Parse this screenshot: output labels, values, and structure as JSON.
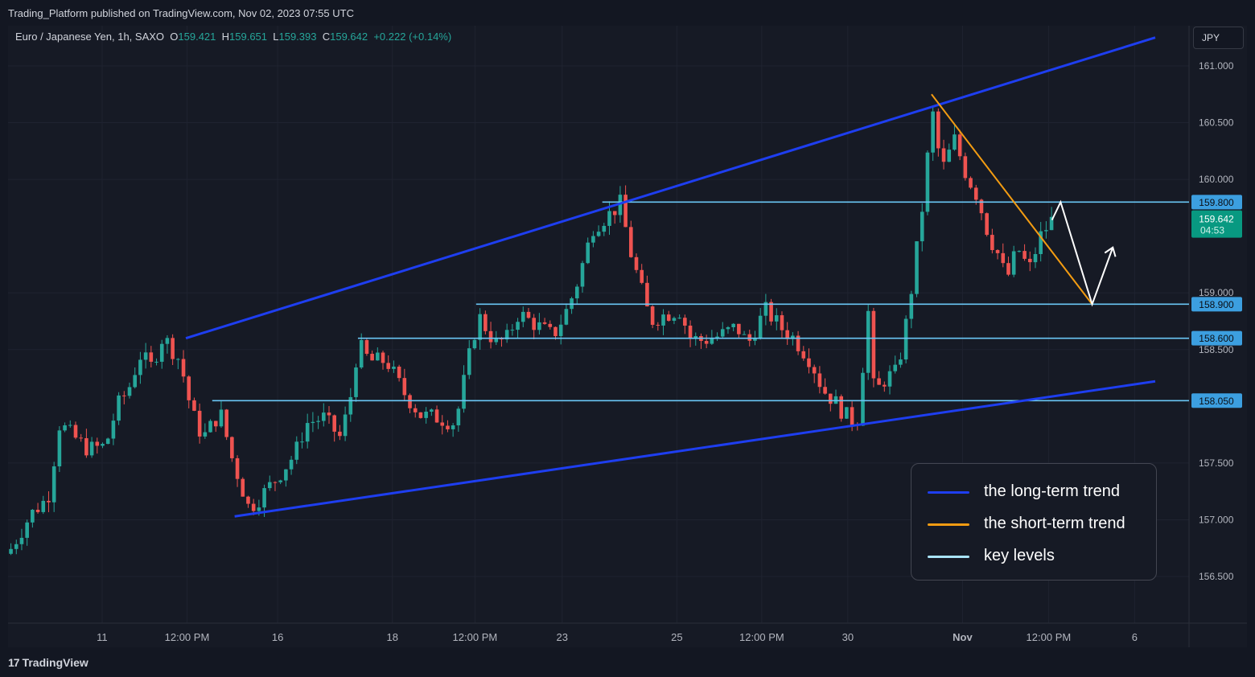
{
  "header": {
    "published_by": "Trading_Platform published on TradingView.com, Nov 02, 2023 07:55 UTC",
    "symbol": "Euro / Japanese Yen, 1h, SAXO",
    "o_label": "O",
    "o_value": "159.421",
    "h_label": "H",
    "h_value": "159.651",
    "l_label": "L",
    "l_value": "159.393",
    "c_label": "C",
    "c_value": "159.642",
    "change": "+0.222 (+0.14%)",
    "currency_button": "JPY"
  },
  "footer": {
    "brand": "TradingView",
    "brand_mark": "17"
  },
  "legend": {
    "items": [
      {
        "label": "the long-term trend",
        "color": "#1e3ef0"
      },
      {
        "label": "the short-term trend",
        "color": "#f39c12"
      },
      {
        "label": "key levels",
        "color": "#a9e4fb"
      }
    ]
  },
  "chart_data": {
    "type": "candlestick",
    "symbol": "EURJPY",
    "timeframe": "1h",
    "ylim": [
      156.1,
      161.55
    ],
    "y_ticks": [
      {
        "value": 161.0,
        "label": "161.000"
      },
      {
        "value": 160.5,
        "label": "160.500"
      },
      {
        "value": 160.0,
        "label": "160.000"
      },
      {
        "value": 159.0,
        "label": "159.000"
      },
      {
        "value": 158.5,
        "label": "158.500"
      },
      {
        "value": 157.5,
        "label": "157.500"
      },
      {
        "value": 157.0,
        "label": "157.000"
      },
      {
        "value": 156.5,
        "label": "156.500"
      }
    ],
    "x_ticks": [
      {
        "t": 16.4,
        "label": "11",
        "bold": false
      },
      {
        "t": 31.2,
        "label": "12:00 PM",
        "bold": false
      },
      {
        "t": 47.0,
        "label": "16",
        "bold": false
      },
      {
        "t": 67.0,
        "label": "18",
        "bold": false
      },
      {
        "t": 81.4,
        "label": "12:00 PM",
        "bold": false
      },
      {
        "t": 96.6,
        "label": "23",
        "bold": false
      },
      {
        "t": 116.6,
        "label": "25",
        "bold": false
      },
      {
        "t": 131.4,
        "label": "12:00 PM",
        "bold": false
      },
      {
        "t": 146.4,
        "label": "30",
        "bold": false
      },
      {
        "t": 166.4,
        "label": "Nov",
        "bold": true
      },
      {
        "t": 181.4,
        "label": "12:00 PM",
        "bold": false
      },
      {
        "t": 196.4,
        "label": "6",
        "bold": false
      }
    ],
    "key_levels": [
      {
        "value": 159.8,
        "label": "159.800",
        "t_start": 103.6
      },
      {
        "value": 158.9,
        "label": "158.900",
        "t_start": 81.6
      },
      {
        "value": 158.6,
        "label": "158.600",
        "t_start": 61.0
      },
      {
        "value": 158.05,
        "label": "158.050",
        "t_start": 35.6
      }
    ],
    "current_price": {
      "value": 159.642,
      "label": "159.642",
      "countdown": "04:53"
    },
    "close_path": [
      {
        "t": 0,
        "p": 156.7
      },
      {
        "t": 4,
        "p": 157.05
      },
      {
        "t": 7,
        "p": 157.2
      },
      {
        "t": 9,
        "p": 157.85
      },
      {
        "t": 11,
        "p": 157.75
      },
      {
        "t": 14,
        "p": 157.62
      },
      {
        "t": 17,
        "p": 157.65
      },
      {
        "t": 19,
        "p": 158.0
      },
      {
        "t": 21,
        "p": 158.15
      },
      {
        "t": 23,
        "p": 158.45
      },
      {
        "t": 25,
        "p": 158.35
      },
      {
        "t": 27,
        "p": 158.62
      },
      {
        "t": 30,
        "p": 158.4
      },
      {
        "t": 32,
        "p": 157.95
      },
      {
        "t": 34,
        "p": 157.72
      },
      {
        "t": 37,
        "p": 157.95
      },
      {
        "t": 39,
        "p": 157.55
      },
      {
        "t": 42,
        "p": 157.1
      },
      {
        "t": 44,
        "p": 157.2
      },
      {
        "t": 47,
        "p": 157.38
      },
      {
        "t": 50,
        "p": 157.58
      },
      {
        "t": 52,
        "p": 157.85
      },
      {
        "t": 55,
        "p": 157.9
      },
      {
        "t": 58,
        "p": 157.72
      },
      {
        "t": 60,
        "p": 158.15
      },
      {
        "t": 61,
        "p": 158.55
      },
      {
        "t": 63,
        "p": 158.4
      },
      {
        "t": 66,
        "p": 158.4
      },
      {
        "t": 69,
        "p": 158.12
      },
      {
        "t": 72,
        "p": 157.92
      },
      {
        "t": 75,
        "p": 157.9
      },
      {
        "t": 78,
        "p": 157.85
      },
      {
        "t": 80,
        "p": 158.35
      },
      {
        "t": 82,
        "p": 158.8
      },
      {
        "t": 85,
        "p": 158.55
      },
      {
        "t": 87,
        "p": 158.6
      },
      {
        "t": 89,
        "p": 158.82
      },
      {
        "t": 92,
        "p": 158.72
      },
      {
        "t": 95,
        "p": 158.62
      },
      {
        "t": 97,
        "p": 158.8
      },
      {
        "t": 99,
        "p": 159.05
      },
      {
        "t": 102,
        "p": 159.58
      },
      {
        "t": 105,
        "p": 159.7
      },
      {
        "t": 107,
        "p": 159.8
      },
      {
        "t": 108,
        "p": 159.45
      },
      {
        "t": 110,
        "p": 159.1
      },
      {
        "t": 112,
        "p": 158.75
      },
      {
        "t": 114,
        "p": 158.8
      },
      {
        "t": 117,
        "p": 158.85
      },
      {
        "t": 119,
        "p": 158.6
      },
      {
        "t": 121,
        "p": 158.58
      },
      {
        "t": 124,
        "p": 158.62
      },
      {
        "t": 127,
        "p": 158.7
      },
      {
        "t": 129,
        "p": 158.55
      },
      {
        "t": 132,
        "p": 158.85
      },
      {
        "t": 135,
        "p": 158.68
      },
      {
        "t": 137,
        "p": 158.6
      },
      {
        "t": 140,
        "p": 158.4
      },
      {
        "t": 142,
        "p": 158.15
      },
      {
        "t": 144,
        "p": 158.05
      },
      {
        "t": 146,
        "p": 157.92
      },
      {
        "t": 148,
        "p": 157.85
      },
      {
        "t": 149,
        "p": 158.35
      },
      {
        "t": 150,
        "p": 158.85
      },
      {
        "t": 151,
        "p": 158.1
      },
      {
        "t": 153,
        "p": 158.25
      },
      {
        "t": 155,
        "p": 158.3
      },
      {
        "t": 157,
        "p": 158.85
      },
      {
        "t": 159,
        "p": 159.6
      },
      {
        "t": 160,
        "p": 160.0
      },
      {
        "t": 161,
        "p": 160.65
      },
      {
        "t": 162,
        "p": 160.3
      },
      {
        "t": 163,
        "p": 160.1
      },
      {
        "t": 165,
        "p": 160.35
      },
      {
        "t": 167,
        "p": 160.05
      },
      {
        "t": 169,
        "p": 159.85
      },
      {
        "t": 171,
        "p": 159.5
      },
      {
        "t": 173,
        "p": 159.3
      },
      {
        "t": 174,
        "p": 159.1
      },
      {
        "t": 176,
        "p": 159.4
      },
      {
        "t": 178,
        "p": 159.2
      },
      {
        "t": 180,
        "p": 159.5
      },
      {
        "t": 182,
        "p": 159.642
      }
    ],
    "long_term_trend_lines": [
      {
        "t1": 31.0,
        "p1": 158.6,
        "t2": 200.0,
        "p2": 161.25
      },
      {
        "t1": 39.5,
        "p1": 157.03,
        "t2": 200.0,
        "p2": 158.22
      }
    ],
    "short_term_trend_line": {
      "t1": 161.0,
      "p1": 160.75,
      "t2": 189.0,
      "p2": 158.9
    },
    "projection_path": [
      {
        "t": 182,
        "p": 159.642
      },
      {
        "t": 183.5,
        "p": 159.8
      },
      {
        "t": 189.0,
        "p": 158.9
      },
      {
        "t": 192.6,
        "p": 159.4
      }
    ]
  }
}
